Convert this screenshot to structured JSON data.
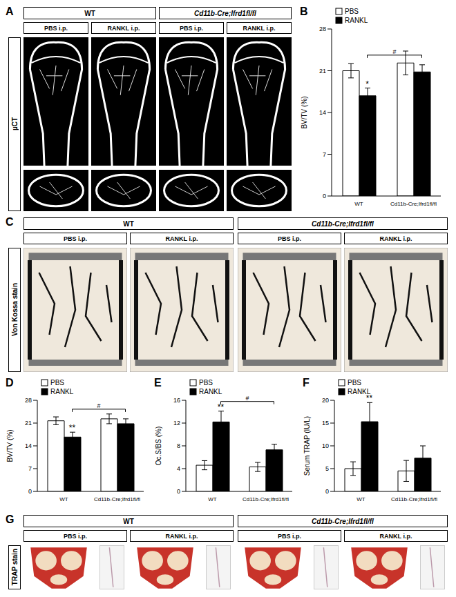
{
  "figure": {
    "groups": [
      "WT",
      "Cd11b-Cre;Ifrd1fl/fl"
    ],
    "treatments": [
      "PBS i.p.",
      "RANKL i.p."
    ],
    "panel_A": {
      "letter": "A",
      "row_label": "µCT"
    },
    "panel_C": {
      "letter": "C",
      "row_label": "Von Kossa stain"
    },
    "panel_G": {
      "letter": "G",
      "row_label": "TRAP stain"
    }
  },
  "chart_data": [
    {
      "panel": "B",
      "type": "bar",
      "y_label": "BV/TV (%)",
      "categories": [
        "WT",
        "Cd11b-Cre;Ifrd1fl/fl"
      ],
      "series": [
        {
          "name": "PBS",
          "color": "#ffffff",
          "values": [
            21,
            22.3
          ],
          "errors": [
            1.2,
            2.0
          ]
        },
        {
          "name": "RANKL",
          "color": "#000000",
          "values": [
            16.8,
            20.8
          ],
          "errors": [
            1.3,
            1.2
          ]
        }
      ],
      "ylim": [
        0,
        28
      ],
      "yticks": [
        0,
        7,
        14,
        21,
        28
      ],
      "annotations": [
        {
          "category": "WT",
          "series": "RANKL",
          "text": "*"
        }
      ],
      "brackets": [
        {
          "from": {
            "category": "WT",
            "series": "RANKL"
          },
          "to": {
            "category": "Cd11b-Cre;Ifrd1fl/fl",
            "series": "RANKL"
          },
          "text": "#"
        }
      ]
    },
    {
      "panel": "D",
      "type": "bar",
      "y_label": "BV/TV (%)",
      "categories": [
        "WT",
        "Cd11b-Cre;Ifrd1fl/fl"
      ],
      "series": [
        {
          "name": "PBS",
          "color": "#ffffff",
          "values": [
            21.7,
            22.3
          ],
          "errors": [
            1.2,
            1.5
          ]
        },
        {
          "name": "RANKL",
          "color": "#000000",
          "values": [
            16.7,
            20.8
          ],
          "errors": [
            1.5,
            1.5
          ]
        }
      ],
      "ylim": [
        0,
        28
      ],
      "yticks": [
        0,
        7,
        14,
        21,
        28
      ],
      "annotations": [
        {
          "category": "WT",
          "series": "RANKL",
          "text": "**"
        }
      ],
      "brackets": [
        {
          "from": {
            "category": "WT",
            "series": "RANKL"
          },
          "to": {
            "category": "Cd11b-Cre;Ifrd1fl/fl",
            "series": "RANKL"
          },
          "text": "#"
        }
      ]
    },
    {
      "panel": "E",
      "type": "bar",
      "y_label": "Oc.S/BS (%)",
      "categories": [
        "WT",
        "Cd11b-Cre;Ifrd1fl/fl"
      ],
      "series": [
        {
          "name": "PBS",
          "color": "#ffffff",
          "values": [
            4.6,
            4.3
          ],
          "errors": [
            0.8,
            0.8
          ]
        },
        {
          "name": "RANKL",
          "color": "#000000",
          "values": [
            12.2,
            7.3
          ],
          "errors": [
            1.9,
            1.0
          ]
        }
      ],
      "ylim": [
        0,
        16
      ],
      "yticks": [
        0,
        4,
        8,
        12,
        16
      ],
      "annotations": [
        {
          "category": "WT",
          "series": "RANKL",
          "text": "**"
        }
      ],
      "brackets": [
        {
          "from": {
            "category": "WT",
            "series": "RANKL"
          },
          "to": {
            "category": "Cd11b-Cre;Ifrd1fl/fl",
            "series": "RANKL"
          },
          "text": "#"
        }
      ]
    },
    {
      "panel": "F",
      "type": "bar",
      "y_label": "Serum TRAP (IU/L)",
      "categories": [
        "WT",
        "Cd11b-Cre;Ifrd1fl/fl"
      ],
      "series": [
        {
          "name": "PBS",
          "color": "#ffffff",
          "values": [
            5.0,
            4.5
          ],
          "errors": [
            1.5,
            2.3
          ]
        },
        {
          "name": "RANKL",
          "color": "#000000",
          "values": [
            15.3,
            7.3
          ],
          "errors": [
            4.2,
            2.7
          ]
        }
      ],
      "ylim": [
        0,
        20
      ],
      "yticks": [
        0,
        5,
        10,
        15,
        20
      ],
      "annotations": [
        {
          "category": "WT",
          "series": "RANKL",
          "text": "**"
        }
      ]
    }
  ]
}
